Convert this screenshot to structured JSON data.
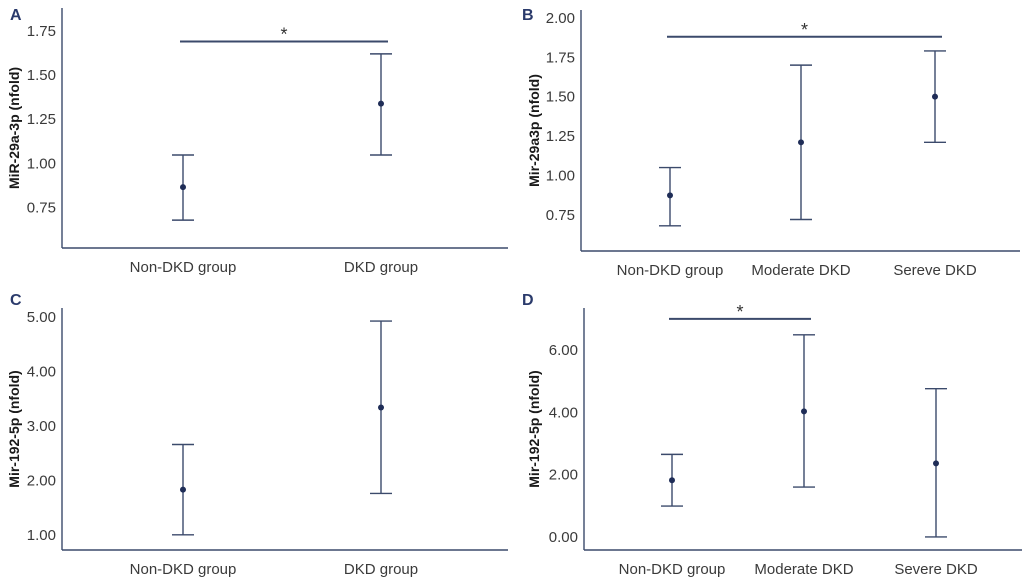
{
  "colors": {
    "axis": "#3b4a6b",
    "point": "#1f2d57",
    "panel_label": "#2a3a6b",
    "text": "#3a3a3a"
  },
  "chart_data": [
    {
      "panel": "A",
      "type": "scatter",
      "subtype": "point-with-error-bars",
      "title": "",
      "xlabel": "",
      "ylabel": "MiR-29a-3p (nfold)",
      "categories": [
        "Non-DKD group",
        "DKD group"
      ],
      "yticks": [
        "0.75",
        "1.00",
        "1.25",
        "1.50",
        "1.75"
      ],
      "ytick_values": [
        0.75,
        1.0,
        1.25,
        1.5,
        1.75
      ],
      "ylim": [
        0.52,
        1.88
      ],
      "grid": false,
      "series": [
        {
          "name": "mean",
          "values": [
            0.865,
            1.338
          ],
          "lower": [
            0.678,
            1.047
          ],
          "upper": [
            1.047,
            1.62
          ]
        }
      ],
      "significance": [
        {
          "from": 0,
          "to": 1,
          "label": "*",
          "y": 1.69
        }
      ]
    },
    {
      "panel": "B",
      "type": "scatter",
      "subtype": "point-with-error-bars",
      "title": "",
      "xlabel": "",
      "ylabel": "Mir-29a3p (nfold)",
      "categories": [
        "Non-DKD group",
        "Moderate DKD",
        "Sereve DKD"
      ],
      "yticks": [
        "0.75",
        "1.00",
        "1.25",
        "1.50",
        "1.75",
        "2.00"
      ],
      "ytick_values": [
        0.75,
        1.0,
        1.25,
        1.5,
        1.75,
        2.0
      ],
      "ylim": [
        0.52,
        2.05
      ],
      "grid": false,
      "series": [
        {
          "name": "mean",
          "values": [
            0.873,
            1.21,
            1.5
          ],
          "lower": [
            0.68,
            0.72,
            1.21
          ],
          "upper": [
            1.05,
            1.7,
            1.79
          ]
        }
      ],
      "significance": [
        {
          "from": 0,
          "to": 2,
          "label": "*",
          "y": 1.88
        }
      ]
    },
    {
      "panel": "C",
      "type": "scatter",
      "subtype": "point-with-error-bars",
      "title": "",
      "xlabel": "",
      "ylabel": "Mir-192-5p (nfold)",
      "categories": [
        "Non-DKD group",
        "DKD group"
      ],
      "yticks": [
        "1.00",
        "2.00",
        "3.00",
        "4.00",
        "5.00"
      ],
      "ytick_values": [
        1,
        2,
        3,
        4,
        5
      ],
      "ylim": [
        0.72,
        5.17
      ],
      "grid": false,
      "series": [
        {
          "name": "mean",
          "values": [
            1.83,
            3.34
          ],
          "lower": [
            1.0,
            1.76
          ],
          "upper": [
            2.66,
            4.93
          ]
        }
      ],
      "significance": []
    },
    {
      "panel": "D",
      "type": "scatter",
      "subtype": "point-with-error-bars",
      "title": "",
      "xlabel": "",
      "ylabel": "Mir-192-5p (nfold)",
      "categories": [
        "Non-DKD group",
        "Moderate DKD",
        "Severe DKD"
      ],
      "yticks": [
        "0.00",
        "2.00",
        "4.00",
        "6.00"
      ],
      "ytick_values": [
        0,
        2,
        4,
        6
      ],
      "ylim": [
        -0.42,
        7.35
      ],
      "grid": false,
      "series": [
        {
          "name": "mean",
          "values": [
            1.82,
            4.03,
            2.36
          ],
          "lower": [
            0.99,
            1.6,
            0.0
          ],
          "upper": [
            2.65,
            6.49,
            4.76
          ]
        }
      ],
      "significance": [
        {
          "from": 0,
          "to": 1,
          "label": "*",
          "y": 7.0
        }
      ]
    }
  ]
}
